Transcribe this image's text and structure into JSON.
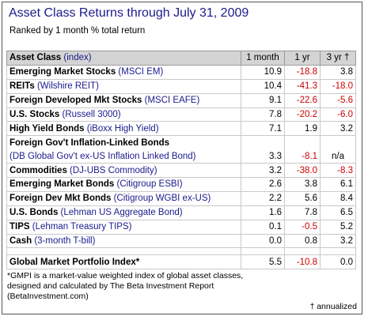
{
  "title": "Asset Class Returns through July 31, 2009",
  "subtitle": "Ranked by 1 month % total return",
  "header": {
    "asset": "Asset Class",
    "index": "(index)",
    "m1": "1 month",
    "y1": "1 yr",
    "y3": "3 yr †"
  },
  "rows": [
    {
      "cls": "Emerging Market Stocks",
      "idx": "(MSCI EM)",
      "m1": "10.9",
      "y1": "-18.8",
      "y3": "3.8"
    },
    {
      "cls": "REITs",
      "idx": "(Wilshire REIT)",
      "m1": "10.4",
      "y1": "-41.3",
      "y3": "-18.0"
    },
    {
      "cls": "Foreign Developed Mkt Stocks",
      "idx": "(MSCI EAFE)",
      "m1": "9.1",
      "y1": "-22.6",
      "y3": "-5.6"
    },
    {
      "cls": "U.S. Stocks",
      "idx": "(Russell 3000)",
      "m1": "7.8",
      "y1": "-20.2",
      "y3": "-6.0"
    },
    {
      "cls": "High Yield Bonds",
      "idx": "(iBoxx High Yield)",
      "m1": "7.1",
      "y1": "1.9",
      "y3": "3.2"
    },
    {
      "cls": "Foreign Gov't Inflation-Linked Bonds",
      "idx": "(DB Global Gov't ex-US Inflation Linked Bond)",
      "m1": "3.3",
      "y1": "-8.1",
      "y3": "n/a"
    },
    {
      "cls": "Commodities",
      "idx": "(DJ-UBS Commodity)",
      "m1": "3.2",
      "y1": "-38.0",
      "y3": "-8.3"
    },
    {
      "cls": "Emerging Market Bonds",
      "idx": "(Citigroup ESBI)",
      "m1": "2.6",
      "y1": "3.8",
      "y3": "6.1"
    },
    {
      "cls": "Foreign Dev Mkt Bonds",
      "idx": "(Citigroup WGBI ex-US)",
      "m1": "2.2",
      "y1": "5.6",
      "y3": "8.4"
    },
    {
      "cls": "U.S. Bonds",
      "idx": "(Lehman US Aggregate Bond)",
      "m1": "1.6",
      "y1": "7.8",
      "y3": "6.5"
    },
    {
      "cls": "TIPS",
      "idx": "(Lehman Treasury TIPS)",
      "m1": "0.1",
      "y1": "-0.5",
      "y3": "5.2"
    },
    {
      "cls": "Cash",
      "idx": "(3-month T-bill)",
      "m1": "0.0",
      "y1": "0.8",
      "y3": "3.2"
    }
  ],
  "gmpi": {
    "cls": "Global Market Portfolio Index*",
    "m1": "5.5",
    "y1": "-10.8",
    "y3": "0.0"
  },
  "footnote": "*GMPI is a market-value weighted index of global asset classes, designed and calculated by The Beta Investment Report (BetaInvestment.com)",
  "annotation": "† annualized",
  "colors": {
    "title": "#1a1a8c",
    "index": "#1a1a8c",
    "negative": "#cc0000",
    "header_bg": "#d4d4d4"
  }
}
